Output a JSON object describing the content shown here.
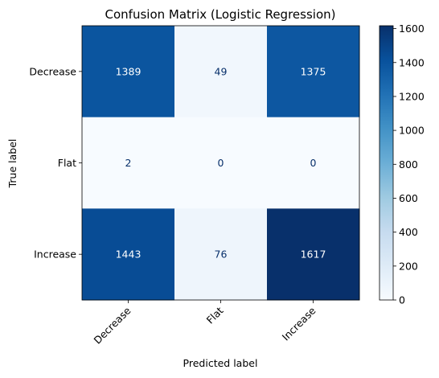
{
  "chart_data": {
    "type": "heatmap",
    "title": "Confusion Matrix (Logistic Regression)",
    "xlabel": "Predicted label",
    "ylabel": "True label",
    "x_categories": [
      "Decrease",
      "Flat",
      "Increase"
    ],
    "y_categories": [
      "Decrease",
      "Flat",
      "Increase"
    ],
    "values": [
      [
        1389,
        49,
        1375
      ],
      [
        2,
        0,
        0
      ],
      [
        1443,
        76,
        1617
      ]
    ],
    "colormap": "Blues",
    "colorbar": {
      "range": [
        0,
        1617
      ],
      "ticks": [
        0,
        200,
        400,
        600,
        800,
        1000,
        1200,
        1400,
        1600
      ]
    }
  }
}
